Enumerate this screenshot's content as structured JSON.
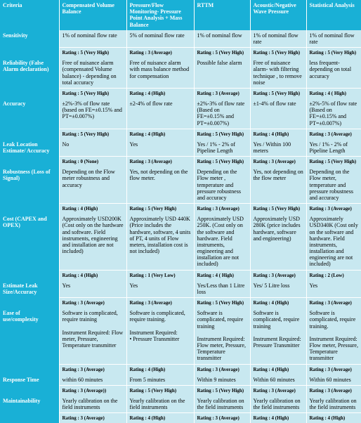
{
  "columns": [
    "Criteria",
    "Compensated Volume Balance",
    "Pressure/Flow Monitoring- Pressure Point Analysis + Mass Balance",
    "RTTM",
    "Acoustic/Negative Wave Pressure",
    "Statistical Analysis"
  ],
  "rows": [
    {
      "criteria": "Sensitivity",
      "cells": [
        "1% of nominal flow rate",
        "5% of nominal flow rate",
        "1% of nominal flow",
        "1% of nominal flow rate",
        "1% of nominal flow rate"
      ],
      "ratings": [
        "Rating : 5 (Very High)",
        "Rating : 3 (Average)",
        "Rating : 5 (Very High)",
        "Rating : 5 (Very High)",
        "Rating : 5 (Very High)"
      ]
    },
    {
      "criteria": "Reliability (False Alarm declaration)",
      "cells": [
        "Free of nuisance alarm (compensated Volume balance) - depending on total accuracy",
        "Free of nuisance alarm with mass balance method for compensation",
        "Possible false alarm",
        "Free of nuisance alarm- with filtering technique , to remove noise",
        "less frequent- depending on total accuracy"
      ],
      "ratings": [
        "Rating : 5 (Very High)",
        "Rating : 4 (High)",
        "Rating :  3 (Average)",
        "Rating : 5 (Very High)",
        "Rating : 4 ( High)"
      ]
    },
    {
      "criteria": "Accuracy",
      "cells": [
        "±2%-3% of flow rate (based on FE=±0.15% and PT=±0.007%)",
        "±2-4% of flow rate",
        "±2%-3% of flow rate (Based on FE=±0.15% and PT=±0.007%)",
        "±1-4% of flow rate",
        "±2%-5% of flow rate (Based on FE=±0.15% and PT=±0.007%)"
      ],
      "ratings": [
        "Rating : 5 (Very High)",
        "Rating : 4 (High)",
        "Rating : 5 (Very High)",
        "Rating : 4 (High)",
        "Rating : 3 (Average)"
      ]
    },
    {
      "criteria": "Leak Location Estimate/ Accuracy",
      "cells": [
        "No",
        "Yes",
        "Yes / 1% - 2% of Pipeline Length",
        "Yes / Within 100 meters",
        "Yes / 1% - 2% of Pipeline Length"
      ],
      "ratings": [
        "Rating : 0 (None)",
        "Rating : 3 (Average)",
        "Rating : 5 (Very High)",
        "Rating : 3 (Average)",
        "Rating : 5 (Very High)"
      ]
    },
    {
      "criteria": "Robustness (Loss of Signal)",
      "cells": [
        "Depending on the Flow meter robustness and accuracy",
        "Yes, not depending on the flow meter.",
        "Depending on the Flow meter , temperature and pressure robustness and accuracy",
        "Yes, not depending on the flow meter",
        "Depending on the Flow meter, temperature and pressure robustness and accuracy"
      ],
      "ratings": [
        "Rating : 4 (High)",
        "Rating : 5 (Very High)",
        "Rating : 3 (Average)",
        "Rating : 5 (Very High)",
        "Rating : 3 (Average)"
      ]
    },
    {
      "criteria": "Cost (CAPEX and OPEX)",
      "cells": [
        "Approximately USD200K (Cost only on the hardware and software. Field instruments, engineering and installation are not included)",
        "Approximately USD 440K (Price includes the hardware, software, 4 units of PT, 4 units of Flow meters, installation cost is not included)",
        "Approximately USD 250K. (Cost only on the software and hardware. Field instruments, engineering and installation are not included)",
        "Approximately USD 280K (price includes hardware, software and engineering)",
        "Approximately USD340K (Cost only on the software and hardware. Field instruments, installation and engineering are not included)"
      ],
      "ratings": [
        "Rating : 4 (High)",
        "Rating : 1 (Very Low)",
        "Rating : 4 ( High)",
        "Rating : 3 (Average)",
        "Rating : 2 (Low)"
      ]
    },
    {
      "criteria": "Estimate Leak Size/Accuracy",
      "cells": [
        "Yes",
        "Yes",
        "Yes/Less than 1 Litre loss",
        "Yes/ 5 Litre loss",
        "Yes"
      ],
      "ratings": [
        "Rating : 3 (Average)",
        "Rating : 3 (Average)",
        "Rating : 5 (Very High)",
        "Rating : 4 (High)",
        "Rating : 3 (Average)"
      ]
    },
    {
      "criteria": "Ease of use/complexity",
      "cells": [
        "Software is complicated, require training\n\nInstrument Required: Flow meter, Pressure, Temperature transmitter",
        "Software is complicated, require training.\n\nInstrument Required:\n•   Pressure Transmitter",
        "Software is complicated, require training\n\nInstrument Required: Flow meter, Pressure, Temperature transmitter",
        "Software is complicated, require training\n\nInstrument Required: Pressure Transmitter",
        "Software is complicated, require training.\n\nInstrument Required: Flow meter, Pressure, Temperature transmitter"
      ],
      "ratings": [
        "Rating : 3 (Average)",
        "Rating : 4 (High)",
        "Rating : 3 (Average)",
        "Rating : 4 (High)",
        "Rating : 3 (Average)"
      ]
    },
    {
      "criteria": "Response Time",
      "cells": [
        "within 60 minutes",
        "From 5 minutes",
        "Within 9 minutes",
        "Within 60 minutes",
        "Within 60 minutes"
      ],
      "ratings": [
        "Rating : 3 (Average))",
        "Rating : 5 (Very High)",
        "Rating : 5 (Very High)",
        "Rating : 3 (Average)",
        "Rating : 3 (Average)"
      ]
    },
    {
      "criteria": "Maintainability",
      "cells": [
        "Yearly calibration on the field instruments",
        "Yearly calibration on the field instruments",
        "Yearly calibration on the field instruments",
        "Yearly calibration on the field instruments",
        "Yearly calibration on the field instruments"
      ],
      "ratings": [
        "Rating : 3 (Average)",
        "Rating : 4 (High)",
        "Rating : 3 (Average)",
        "Rating : 4 (High)",
        "Rating : 4 (High)"
      ]
    }
  ]
}
